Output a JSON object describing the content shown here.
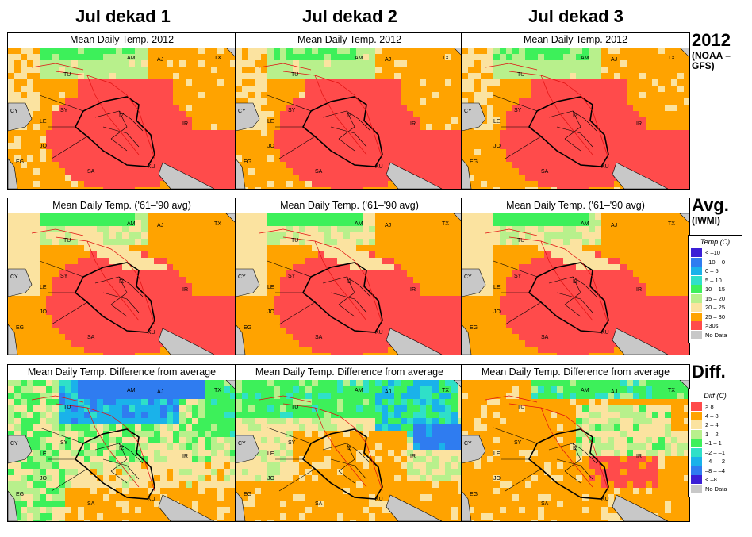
{
  "columns": [
    {
      "title": "Jul dekad 1"
    },
    {
      "title": "Jul dekad 2"
    },
    {
      "title": "Jul dekad 3"
    }
  ],
  "rows": [
    {
      "title": "2012",
      "subtitle": "(NOAA –GFS)",
      "panel_title": "Mean Daily Temp. 2012"
    },
    {
      "title": "Avg.",
      "subtitle": "(IWMI)",
      "panel_title": "Mean Daily Temp. ('61–'90 avg)"
    },
    {
      "title": "Diff.",
      "subtitle": "",
      "panel_title": "Mean Daily Temp. Difference from average"
    }
  ],
  "map_labels": [
    "AM",
    "AJ",
    "TX",
    "TU",
    "SY",
    "IR",
    "LE",
    "JO",
    "EG",
    "SA",
    "KU",
    "CY",
    "IZ"
  ],
  "temp_legend": {
    "title": "Temp (C)",
    "items": [
      {
        "label": "< –10",
        "color": "#3b1fd6"
      },
      {
        "label": "–10 – 0",
        "color": "#2f7cf0"
      },
      {
        "label": "0 – 5",
        "color": "#1ab2ea"
      },
      {
        "label": "5 – 10",
        "color": "#2fe0c8"
      },
      {
        "label": "10 – 15",
        "color": "#3df05a"
      },
      {
        "label": "15 – 20",
        "color": "#b8f08c"
      },
      {
        "label": "20 – 25",
        "color": "#fbe3a0"
      },
      {
        "label": "25 – 30",
        "color": "#ffa300"
      },
      {
        "label": ">30s",
        "color": "#ff4b4b"
      },
      {
        "label": "No Data",
        "color": "#c8c8c8"
      }
    ]
  },
  "diff_legend": {
    "title": "Diff (C)",
    "items": [
      {
        "label": "> 8",
        "color": "#ff4b4b"
      },
      {
        "label": "4 – 8",
        "color": "#ffa300"
      },
      {
        "label": "2 – 4",
        "color": "#fbe3a0"
      },
      {
        "label": "1 – 2",
        "color": "#b8f08c"
      },
      {
        "label": "–1 – 1",
        "color": "#3df05a"
      },
      {
        "label": "–2 – –1",
        "color": "#2fe0c8"
      },
      {
        "label": "–4 – –2",
        "color": "#1ab2ea"
      },
      {
        "label": "–8 – –4",
        "color": "#2f7cf0"
      },
      {
        "label": "< –8",
        "color": "#3b1fd6"
      },
      {
        "label": "No Data",
        "color": "#c8c8c8"
      }
    ]
  }
}
